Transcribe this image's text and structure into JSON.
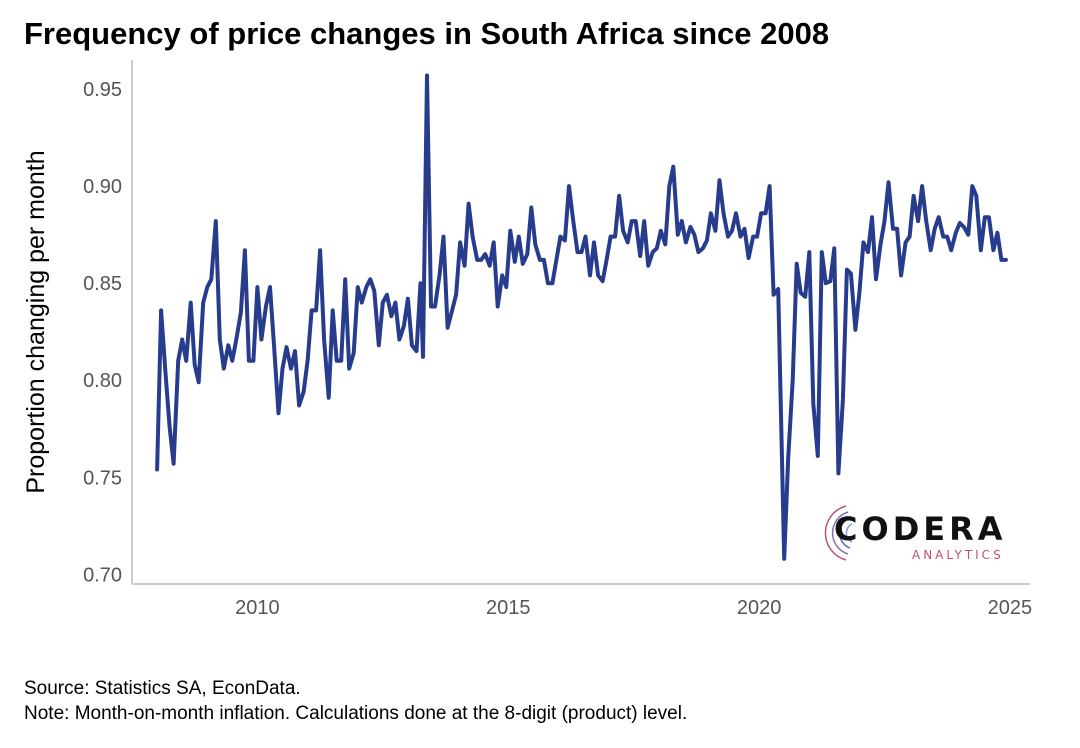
{
  "chart_data": {
    "type": "line",
    "title": "Frequency of price changes in South Africa since 2008",
    "xlabel": "",
    "ylabel": "Proportion changing per month",
    "xlim": [
      2007.5,
      2025.4
    ],
    "ylim": [
      0.695,
      0.965
    ],
    "xticks": [
      2010,
      2015,
      2020,
      2025
    ],
    "yticks": [
      0.7,
      0.75,
      0.8,
      0.85,
      0.9,
      0.95
    ],
    "ytick_labels": [
      "0.70",
      "0.75",
      "0.80",
      "0.85",
      "0.90",
      "0.95"
    ],
    "grid": false,
    "legend": "none",
    "series": [
      {
        "color": "#283c8e",
        "points": [
          [
            2008.0,
            0.754
          ],
          [
            2008.08,
            0.836
          ],
          [
            2008.17,
            0.803
          ],
          [
            2008.25,
            0.776
          ],
          [
            2008.33,
            0.757
          ],
          [
            2008.42,
            0.81
          ],
          [
            2008.5,
            0.821
          ],
          [
            2008.58,
            0.81
          ],
          [
            2008.67,
            0.84
          ],
          [
            2008.75,
            0.808
          ],
          [
            2008.83,
            0.799
          ],
          [
            2008.92,
            0.84
          ],
          [
            2009.0,
            0.848
          ],
          [
            2009.08,
            0.852
          ],
          [
            2009.17,
            0.882
          ],
          [
            2009.25,
            0.821
          ],
          [
            2009.33,
            0.806
          ],
          [
            2009.42,
            0.818
          ],
          [
            2009.5,
            0.81
          ],
          [
            2009.58,
            0.821
          ],
          [
            2009.67,
            0.835
          ],
          [
            2009.75,
            0.867
          ],
          [
            2009.83,
            0.81
          ],
          [
            2009.92,
            0.81
          ],
          [
            2010.0,
            0.848
          ],
          [
            2010.08,
            0.821
          ],
          [
            2010.17,
            0.838
          ],
          [
            2010.25,
            0.848
          ],
          [
            2010.33,
            0.818
          ],
          [
            2010.42,
            0.783
          ],
          [
            2010.5,
            0.806
          ],
          [
            2010.58,
            0.817
          ],
          [
            2010.67,
            0.806
          ],
          [
            2010.75,
            0.815
          ],
          [
            2010.83,
            0.787
          ],
          [
            2010.92,
            0.794
          ],
          [
            2011.0,
            0.81
          ],
          [
            2011.08,
            0.836
          ],
          [
            2011.17,
            0.836
          ],
          [
            2011.25,
            0.867
          ],
          [
            2011.33,
            0.821
          ],
          [
            2011.42,
            0.791
          ],
          [
            2011.5,
            0.836
          ],
          [
            2011.58,
            0.81
          ],
          [
            2011.67,
            0.81
          ],
          [
            2011.75,
            0.852
          ],
          [
            2011.83,
            0.806
          ],
          [
            2011.92,
            0.814
          ],
          [
            2012.0,
            0.848
          ],
          [
            2012.08,
            0.84
          ],
          [
            2012.17,
            0.848
          ],
          [
            2012.25,
            0.852
          ],
          [
            2012.33,
            0.846
          ],
          [
            2012.42,
            0.818
          ],
          [
            2012.5,
            0.84
          ],
          [
            2012.58,
            0.844
          ],
          [
            2012.67,
            0.833
          ],
          [
            2012.75,
            0.84
          ],
          [
            2012.83,
            0.821
          ],
          [
            2012.92,
            0.828
          ],
          [
            2013.0,
            0.842
          ],
          [
            2013.08,
            0.818
          ],
          [
            2013.17,
            0.815
          ],
          [
            2013.25,
            0.85
          ],
          [
            2013.3,
            0.812
          ],
          [
            2013.38,
            0.957
          ],
          [
            2013.46,
            0.838
          ],
          [
            2013.54,
            0.838
          ],
          [
            2013.63,
            0.854
          ],
          [
            2013.71,
            0.874
          ],
          [
            2013.79,
            0.827
          ],
          [
            2013.88,
            0.836
          ],
          [
            2013.96,
            0.844
          ],
          [
            2014.04,
            0.871
          ],
          [
            2014.13,
            0.859
          ],
          [
            2014.21,
            0.891
          ],
          [
            2014.29,
            0.874
          ],
          [
            2014.38,
            0.862
          ],
          [
            2014.46,
            0.862
          ],
          [
            2014.54,
            0.865
          ],
          [
            2014.63,
            0.859
          ],
          [
            2014.71,
            0.871
          ],
          [
            2014.79,
            0.838
          ],
          [
            2014.88,
            0.854
          ],
          [
            2014.96,
            0.848
          ],
          [
            2015.04,
            0.877
          ],
          [
            2015.13,
            0.861
          ],
          [
            2015.21,
            0.874
          ],
          [
            2015.29,
            0.86
          ],
          [
            2015.38,
            0.865
          ],
          [
            2015.46,
            0.889
          ],
          [
            2015.54,
            0.87
          ],
          [
            2015.63,
            0.862
          ],
          [
            2015.71,
            0.862
          ],
          [
            2015.79,
            0.85
          ],
          [
            2015.88,
            0.85
          ],
          [
            2015.96,
            0.862
          ],
          [
            2016.04,
            0.874
          ],
          [
            2016.13,
            0.872
          ],
          [
            2016.21,
            0.9
          ],
          [
            2016.29,
            0.883
          ],
          [
            2016.38,
            0.866
          ],
          [
            2016.46,
            0.866
          ],
          [
            2016.54,
            0.874
          ],
          [
            2016.63,
            0.854
          ],
          [
            2016.71,
            0.871
          ],
          [
            2016.79,
            0.854
          ],
          [
            2016.88,
            0.851
          ],
          [
            2016.96,
            0.862
          ],
          [
            2017.04,
            0.874
          ],
          [
            2017.13,
            0.874
          ],
          [
            2017.21,
            0.895
          ],
          [
            2017.29,
            0.877
          ],
          [
            2017.38,
            0.871
          ],
          [
            2017.46,
            0.882
          ],
          [
            2017.54,
            0.882
          ],
          [
            2017.63,
            0.864
          ],
          [
            2017.71,
            0.882
          ],
          [
            2017.79,
            0.859
          ],
          [
            2017.88,
            0.866
          ],
          [
            2017.96,
            0.868
          ],
          [
            2018.04,
            0.877
          ],
          [
            2018.13,
            0.87
          ],
          [
            2018.21,
            0.9
          ],
          [
            2018.29,
            0.91
          ],
          [
            2018.38,
            0.875
          ],
          [
            2018.46,
            0.882
          ],
          [
            2018.54,
            0.871
          ],
          [
            2018.63,
            0.879
          ],
          [
            2018.71,
            0.875
          ],
          [
            2018.79,
            0.866
          ],
          [
            2018.88,
            0.868
          ],
          [
            2018.96,
            0.872
          ],
          [
            2019.04,
            0.886
          ],
          [
            2019.13,
            0.877
          ],
          [
            2019.21,
            0.903
          ],
          [
            2019.29,
            0.886
          ],
          [
            2019.38,
            0.874
          ],
          [
            2019.46,
            0.877
          ],
          [
            2019.54,
            0.886
          ],
          [
            2019.63,
            0.874
          ],
          [
            2019.71,
            0.878
          ],
          [
            2019.79,
            0.863
          ],
          [
            2019.88,
            0.874
          ],
          [
            2019.96,
            0.874
          ],
          [
            2020.04,
            0.886
          ],
          [
            2020.13,
            0.886
          ],
          [
            2020.21,
            0.9
          ],
          [
            2020.29,
            0.844
          ],
          [
            2020.38,
            0.847
          ],
          [
            2020.5,
            0.708
          ],
          [
            2020.58,
            0.76
          ],
          [
            2020.67,
            0.8
          ],
          [
            2020.75,
            0.86
          ],
          [
            2020.83,
            0.845
          ],
          [
            2020.92,
            0.843
          ],
          [
            2021.0,
            0.866
          ],
          [
            2021.08,
            0.788
          ],
          [
            2021.17,
            0.761
          ],
          [
            2021.25,
            0.866
          ],
          [
            2021.33,
            0.85
          ],
          [
            2021.42,
            0.851
          ],
          [
            2021.5,
            0.868
          ],
          [
            2021.58,
            0.752
          ],
          [
            2021.67,
            0.79
          ],
          [
            2021.75,
            0.857
          ],
          [
            2021.83,
            0.855
          ],
          [
            2021.92,
            0.826
          ],
          [
            2022.0,
            0.845
          ],
          [
            2022.08,
            0.871
          ],
          [
            2022.17,
            0.866
          ],
          [
            2022.25,
            0.884
          ],
          [
            2022.33,
            0.852
          ],
          [
            2022.42,
            0.87
          ],
          [
            2022.5,
            0.882
          ],
          [
            2022.58,
            0.902
          ],
          [
            2022.67,
            0.878
          ],
          [
            2022.75,
            0.878
          ],
          [
            2022.83,
            0.854
          ],
          [
            2022.92,
            0.871
          ],
          [
            2023.0,
            0.874
          ],
          [
            2023.08,
            0.895
          ],
          [
            2023.17,
            0.882
          ],
          [
            2023.25,
            0.9
          ],
          [
            2023.33,
            0.882
          ],
          [
            2023.42,
            0.867
          ],
          [
            2023.5,
            0.878
          ],
          [
            2023.58,
            0.884
          ],
          [
            2023.67,
            0.874
          ],
          [
            2023.75,
            0.874
          ],
          [
            2023.83,
            0.867
          ],
          [
            2023.92,
            0.876
          ],
          [
            2024.0,
            0.881
          ],
          [
            2024.08,
            0.879
          ],
          [
            2024.17,
            0.875
          ],
          [
            2024.25,
            0.9
          ],
          [
            2024.33,
            0.895
          ],
          [
            2024.42,
            0.867
          ],
          [
            2024.5,
            0.884
          ],
          [
            2024.58,
            0.884
          ],
          [
            2024.67,
            0.867
          ],
          [
            2024.75,
            0.876
          ],
          [
            2024.83,
            0.862
          ],
          [
            2024.92,
            0.862
          ]
        ]
      }
    ]
  },
  "footer": {
    "source": "Source: Statistics SA, EconData.",
    "note": "Note: Month-on-month inflation. Calculations done at the 8-digit (product) level."
  },
  "logo": {
    "word": "CODERA",
    "sub": "ANALYTICS"
  },
  "colors": {
    "line": "#283c8e",
    "axis": "#cccccc",
    "logo_accent": "#c0507a"
  }
}
